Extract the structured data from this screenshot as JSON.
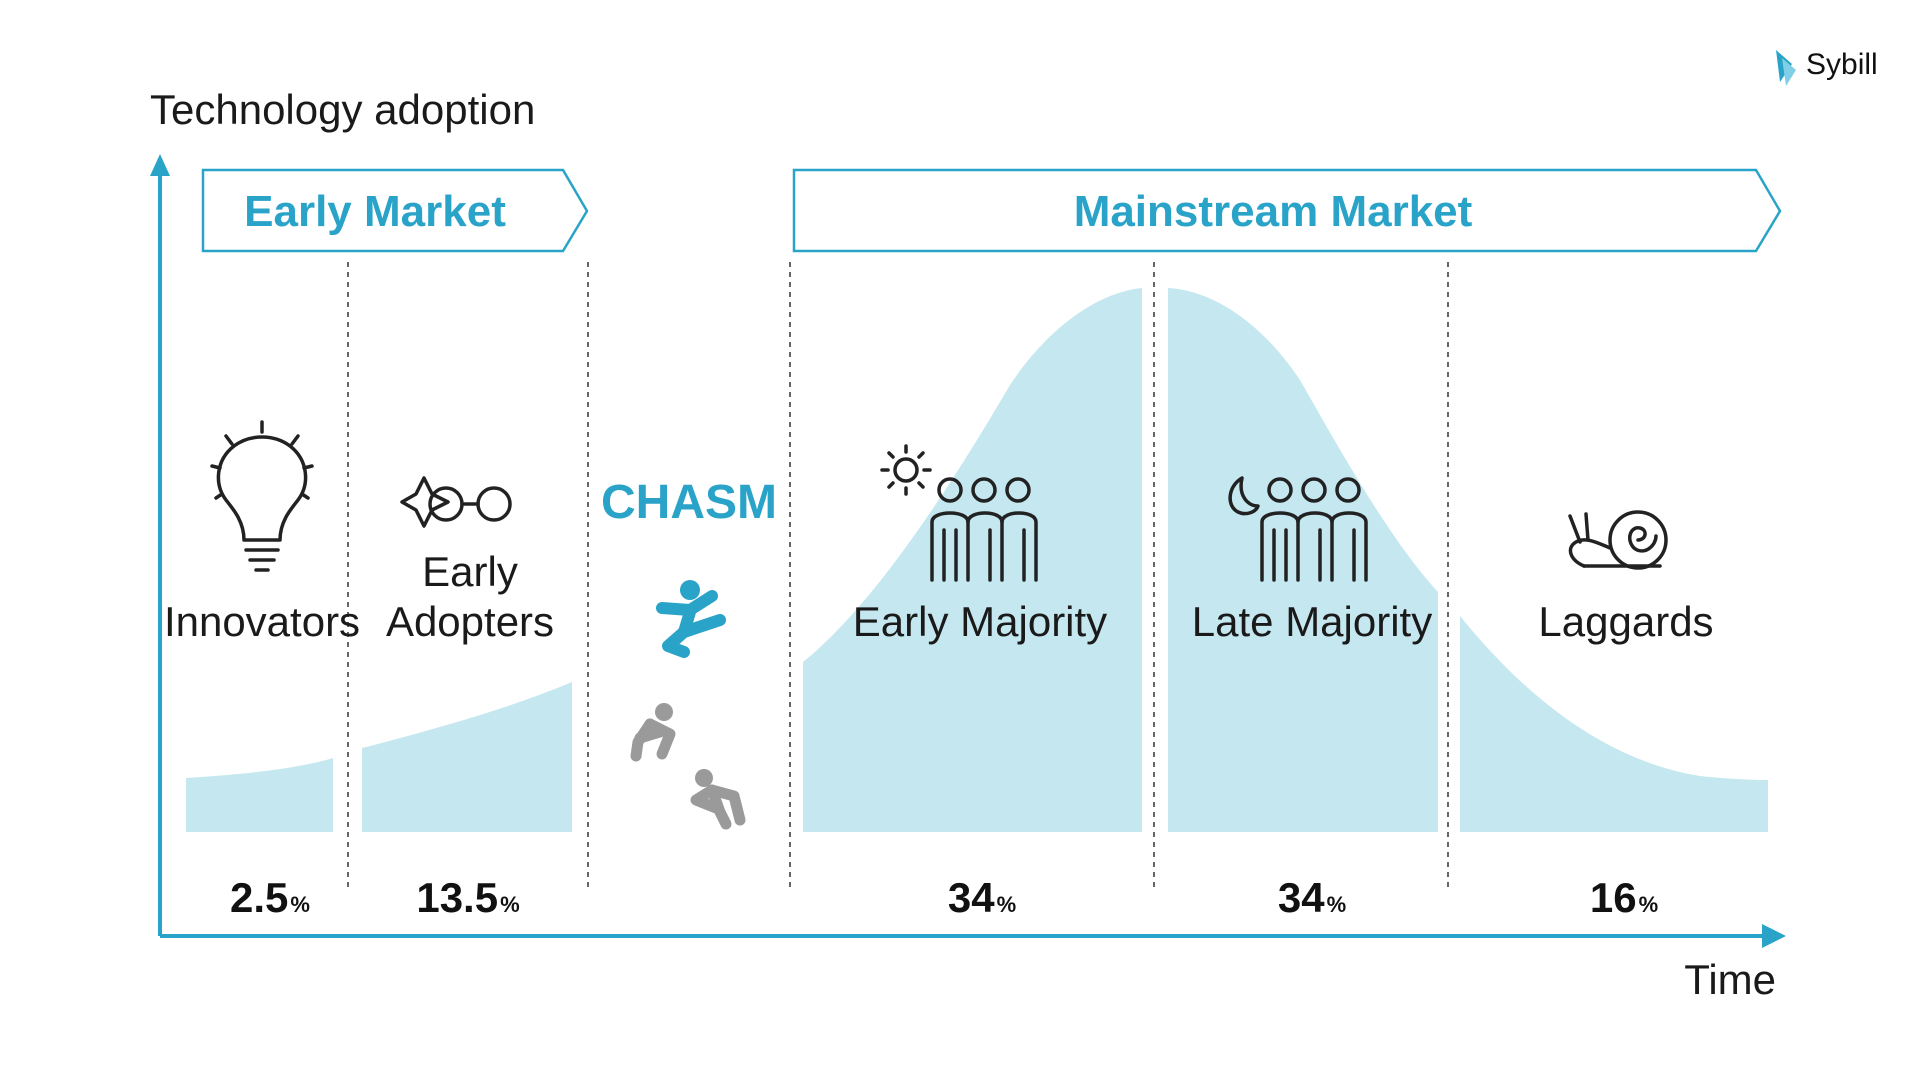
{
  "brand": {
    "name": "Sybill",
    "icon": "sybill-logo-icon"
  },
  "axes": {
    "y_label": "Technology adoption",
    "x_label": "Time"
  },
  "markets": {
    "early": "Early Market",
    "mainstream": "Mainstream Market"
  },
  "chasm": {
    "label": "CHASM"
  },
  "colors": {
    "accent": "#2aa3c8",
    "fill": "#c5e8f0",
    "figure_grey": "#9a9a9a",
    "text": "#1a1a1a"
  },
  "segments": [
    {
      "id": "innovators",
      "lines": [
        "Innovators"
      ],
      "value": "2.5",
      "unit": "%",
      "icon": "lightbulb-icon"
    },
    {
      "id": "early-adopters",
      "lines": [
        "Early",
        "Adopters"
      ],
      "value": "13.5",
      "unit": "%",
      "icon": "sparkle-glasses-icon"
    },
    {
      "id": "early-majority",
      "lines": [
        "Early Majority"
      ],
      "value": "34",
      "unit": "%",
      "icon": "people-sun-icon"
    },
    {
      "id": "late-majority",
      "lines": [
        "Late Majority"
      ],
      "value": "34",
      "unit": "%",
      "icon": "people-moon-icon"
    },
    {
      "id": "laggards",
      "lines": [
        "Laggards"
      ],
      "value": "16",
      "unit": "%",
      "icon": "snail-icon"
    }
  ]
}
